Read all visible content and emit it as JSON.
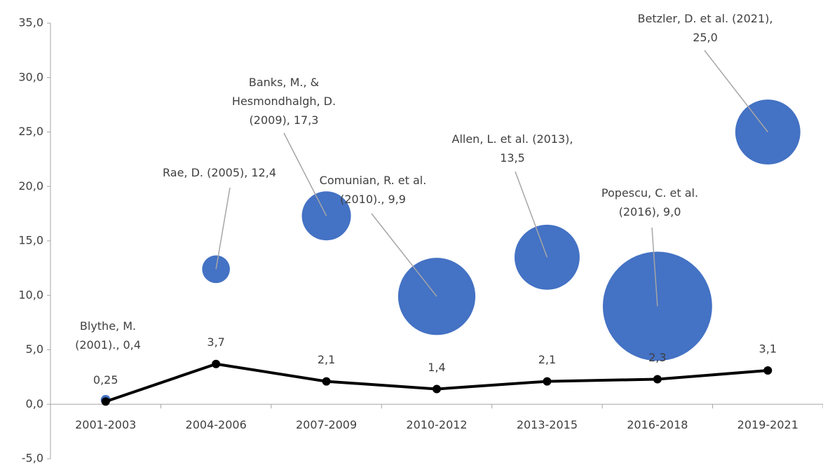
{
  "chart_data": {
    "type": "bubble-line",
    "categories": [
      "2001-2003",
      "2004-2006",
      "2007-2009",
      "2010-2012",
      "2013-2015",
      "2016-2018",
      "2019-2021"
    ],
    "ylim": [
      -5,
      35
    ],
    "yticks": [
      {
        "value": -5,
        "label": "-5,0"
      },
      {
        "value": 0,
        "label": "0,0"
      },
      {
        "value": 5,
        "label": "5,0"
      },
      {
        "value": 10,
        "label": "10,0"
      },
      {
        "value": 15,
        "label": "15,0"
      },
      {
        "value": 20,
        "label": "20,0"
      },
      {
        "value": 25,
        "label": "25,0"
      },
      {
        "value": 30,
        "label": "30,0"
      },
      {
        "value": 35,
        "label": "35,0"
      }
    ],
    "bubbles": {
      "color": "#4472c4",
      "labels": [
        [
          "Blythe, M.",
          "(2001).,"
        ],
        [
          "Rae, D. (2005),"
        ],
        [
          "Banks, M., &",
          "Hesmondhalgh, D.",
          "(2009),"
        ],
        [
          "Comunian, R. et al.",
          "(2010).,"
        ],
        [
          "Allen, L. et al. (2013),"
        ],
        [
          "Popescu, C. et al.",
          "(2016),"
        ],
        [
          "Betzler, D. et al. (2021),"
        ]
      ],
      "values": [
        0.4,
        12.4,
        17.3,
        9.9,
        13.5,
        9.0,
        25.0
      ],
      "value_labels": [
        "0,4",
        "12,4",
        "17,3",
        "9,9",
        "13,5",
        "9,0",
        "25,0"
      ],
      "sizes": [
        1,
        8,
        25,
        62,
        44,
        124,
        44
      ]
    },
    "line": {
      "color": "#000000",
      "values": [
        0.25,
        3.7,
        2.1,
        1.4,
        2.1,
        2.3,
        3.1
      ],
      "value_labels": [
        "0,25",
        "3,7",
        "2,1",
        "1,4",
        "2,1",
        "2,3",
        "3,1"
      ]
    }
  }
}
